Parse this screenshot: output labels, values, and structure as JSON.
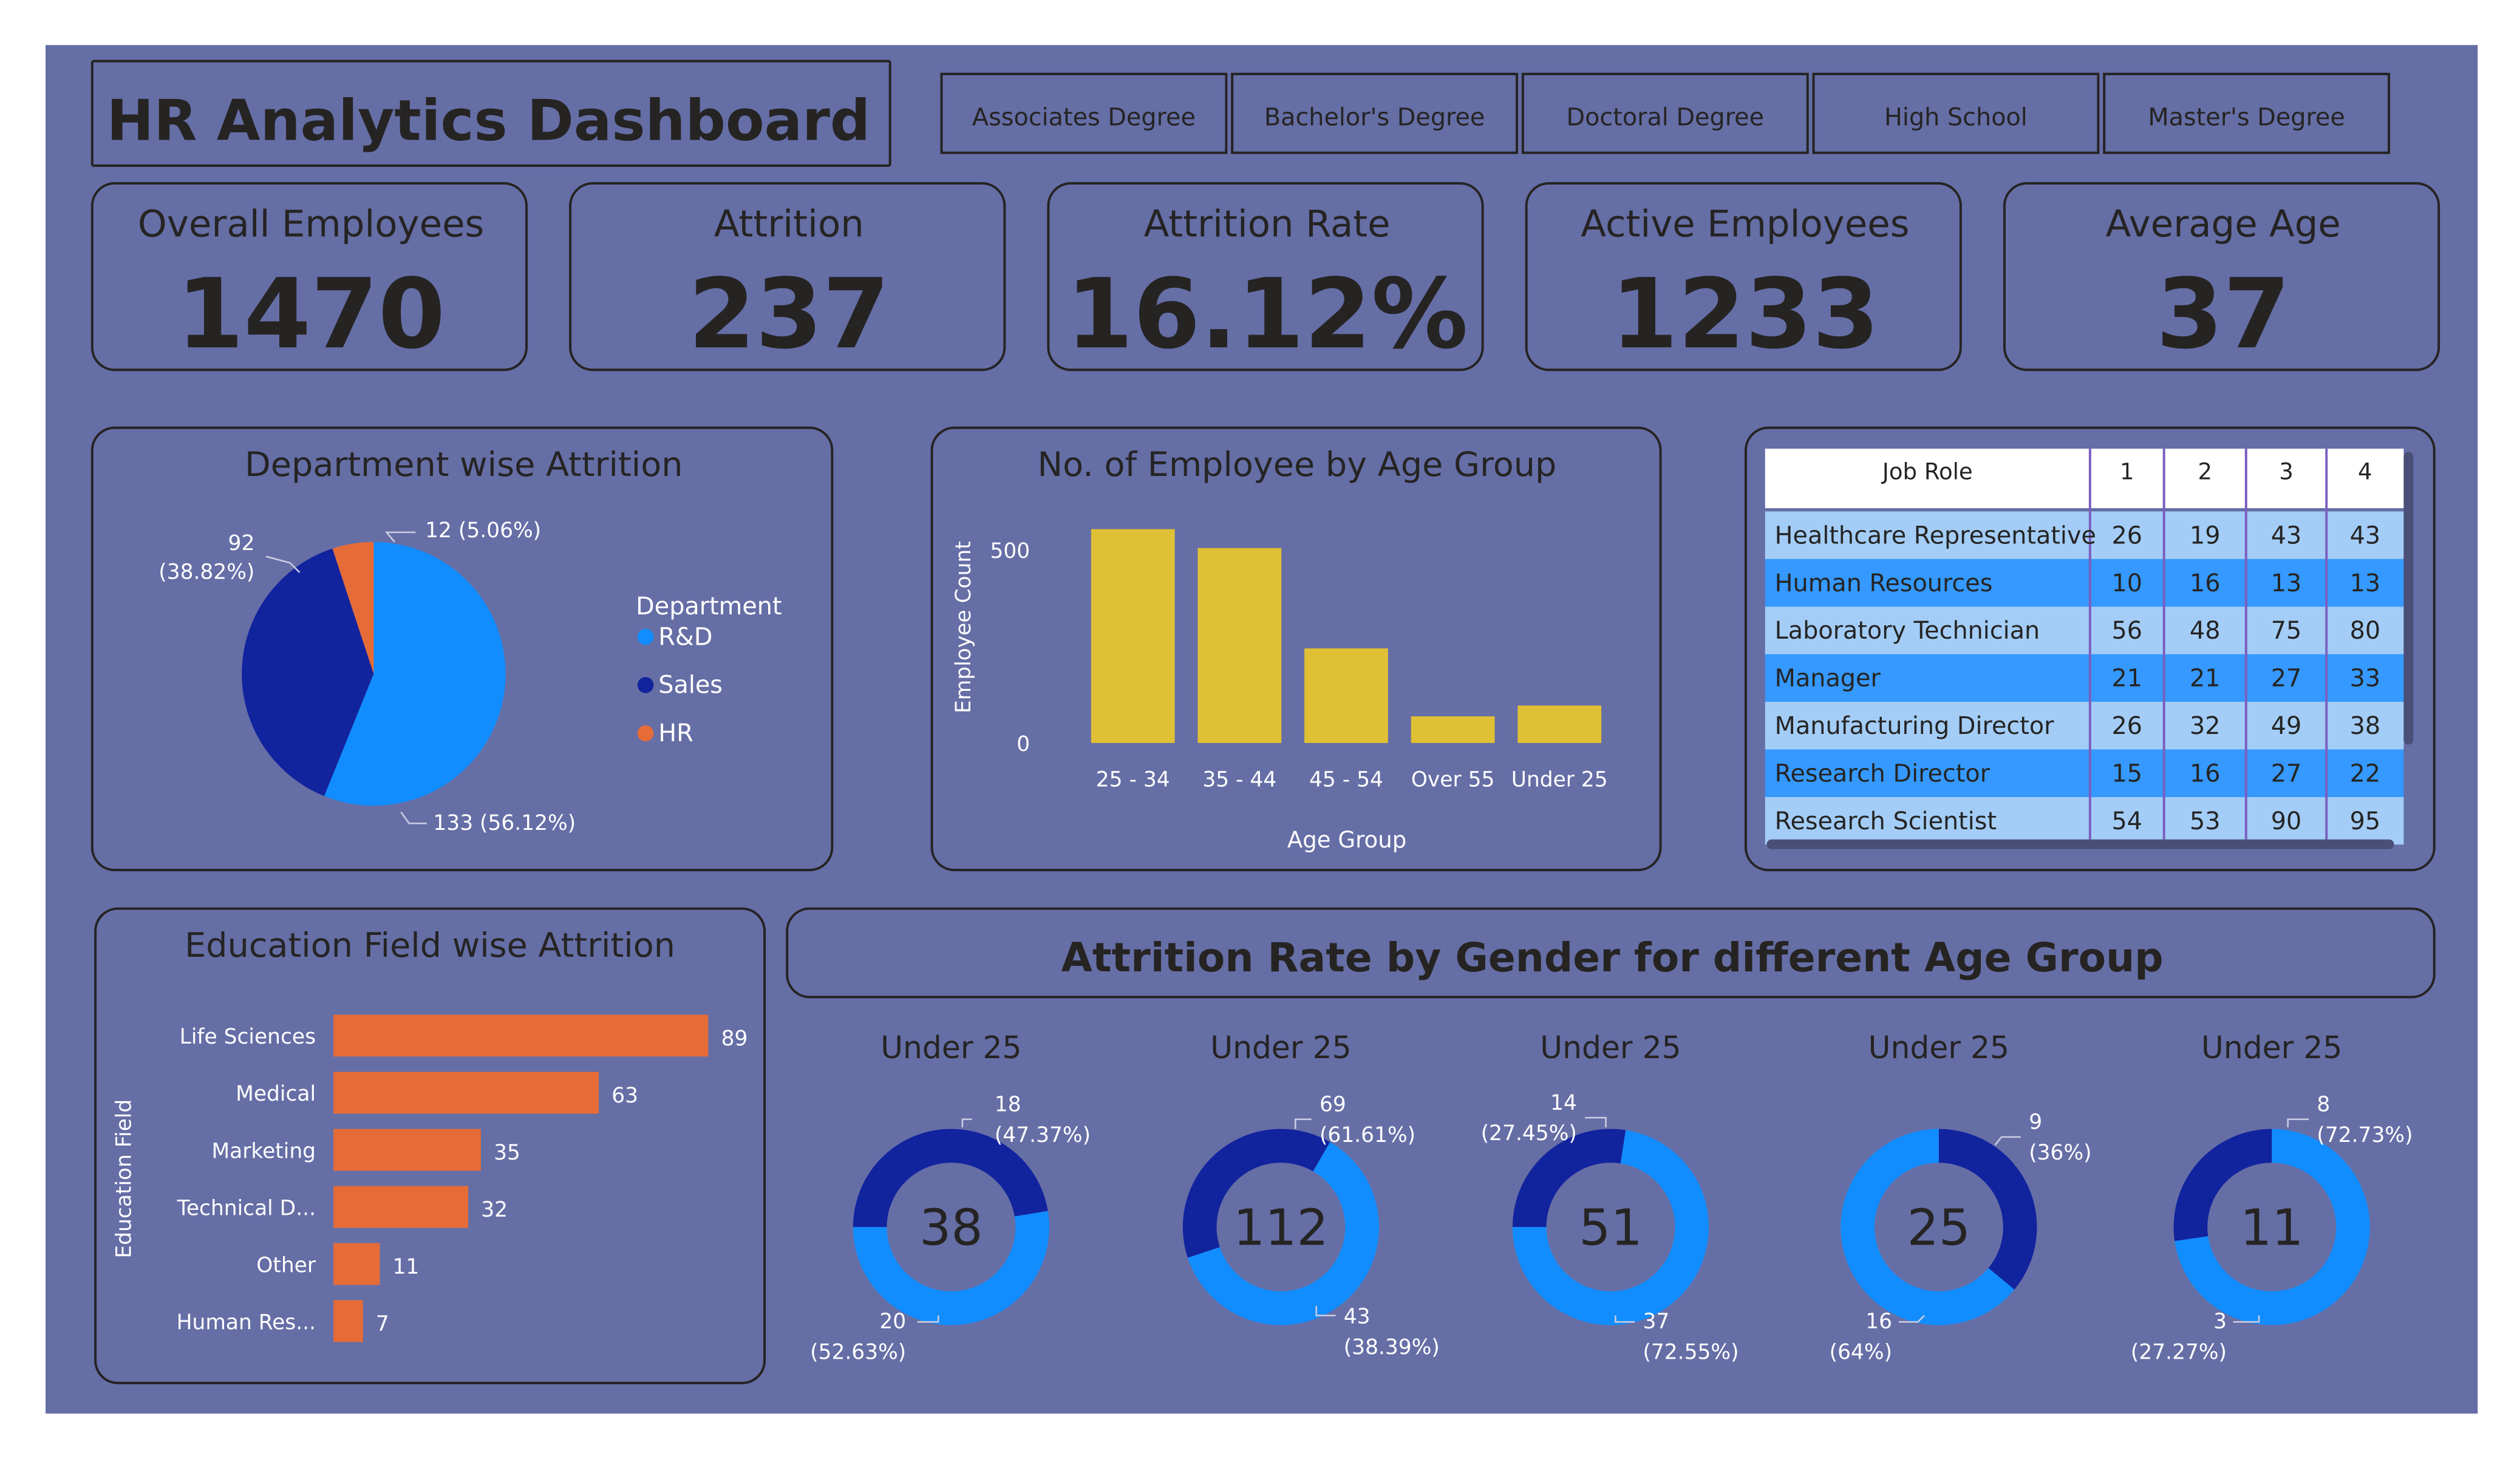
{
  "title": "HR Analytics Dashboard",
  "colors": {
    "canvas": "#666ea6",
    "ink": "#252423",
    "rd": "#118dff",
    "sales": "#12239e",
    "hr": "#e66c37",
    "age_bar": "#e0c034",
    "edu_bar": "#e66c37",
    "row_dark": "#3599ff",
    "row_light": "#a3cdf7"
  },
  "education_filters": [
    "Associates Degree",
    "Bachelor's Degree",
    "Doctoral Degree",
    "High School",
    "Master's Degree"
  ],
  "kpis": [
    {
      "label": "Overall Employees",
      "value": "1470"
    },
    {
      "label": "Attrition",
      "value": "237"
    },
    {
      "label": "Attrition Rate",
      "value": "16.12%"
    },
    {
      "label": "Active Employees",
      "value": "1233"
    },
    {
      "label": "Average Age",
      "value": "37"
    }
  ],
  "chart_data": [
    {
      "id": "department",
      "type": "pie",
      "title": "Department wise Attrition",
      "legend_title": "Department",
      "legend_position": "right",
      "slices": [
        {
          "label": "R&D",
          "value": 133,
          "data_label": "133 (56.12%)"
        },
        {
          "label": "Sales",
          "value": 92,
          "data_label": "92 (38.82%)"
        },
        {
          "label": "HR",
          "value": 12,
          "data_label": "12 (5.06%)"
        }
      ]
    },
    {
      "id": "age_group",
      "type": "bar",
      "title": "No. of Employee by Age Group",
      "xlabel": "Age Group",
      "ylabel": "Employee Count",
      "categories": [
        "25 - 34",
        "35 - 44",
        "45 - 54",
        "Over 55",
        "Under 25"
      ],
      "values": [
        554,
        505,
        245,
        69,
        97
      ],
      "yticks": [
        "0",
        "500"
      ],
      "ylim": [
        0,
        560
      ],
      "grid": false
    },
    {
      "id": "education_field",
      "type": "bar",
      "orientation": "horizontal",
      "title": "Education Field wise Attrition",
      "ylabel": "Education Field",
      "categories": [
        "Life Sciences",
        "Medical",
        "Marketing",
        "Technical D...",
        "Other",
        "Human Res..."
      ],
      "values": [
        89,
        63,
        35,
        32,
        11,
        7
      ],
      "xlim": [
        0,
        89
      ],
      "grid": false
    },
    {
      "id": "job_role_table",
      "type": "table",
      "columns": [
        "Job Role",
        "1",
        "2",
        "3",
        "4"
      ],
      "rows": [
        [
          "Healthcare Representative",
          "26",
          "19",
          "43",
          "43"
        ],
        [
          "Human Resources",
          "10",
          "16",
          "13",
          "13"
        ],
        [
          "Laboratory Technician",
          "56",
          "48",
          "75",
          "80"
        ],
        [
          "Manager",
          "21",
          "21",
          "27",
          "33"
        ],
        [
          "Manufacturing Director",
          "26",
          "32",
          "49",
          "38"
        ],
        [
          "Research Director",
          "15",
          "16",
          "27",
          "22"
        ],
        [
          "Research Scientist",
          "54",
          "53",
          "90",
          "95"
        ]
      ]
    },
    {
      "id": "gender_age",
      "type": "pie",
      "style": "donut",
      "title": "Attrition Rate by Gender for different Age Group",
      "donuts": [
        {
          "title": "Under 25",
          "center": "38",
          "slices": [
            {
              "value": 18,
              "label_a": "18",
              "label_b": "(47.37%)",
              "color": "sales"
            },
            {
              "value": 20,
              "label_a": "20",
              "label_b": "(52.63%)",
              "color": "rd"
            }
          ]
        },
        {
          "title": "Under 25",
          "center": "112",
          "slices": [
            {
              "value": 69,
              "label_a": "69",
              "label_b": "(61.61%)",
              "color": "rd"
            },
            {
              "value": 43,
              "label_a": "43",
              "label_b": "(38.39%)",
              "color": "sales"
            }
          ]
        },
        {
          "title": "Under 25",
          "center": "51",
          "slices": [
            {
              "value": 14,
              "label_a": "14",
              "label_b": "(27.45%)",
              "color": "sales"
            },
            {
              "value": 37,
              "label_a": "37",
              "label_b": "(72.55%)",
              "color": "rd"
            }
          ]
        },
        {
          "title": "Under 25",
          "center": "25",
          "slices": [
            {
              "value": 9,
              "label_a": "9",
              "label_b": "(36%)",
              "color": "sales"
            },
            {
              "value": 16,
              "label_a": "16",
              "label_b": "(64%)",
              "color": "rd"
            }
          ]
        },
        {
          "title": "Under 25",
          "center": "11",
          "slices": [
            {
              "value": 8,
              "label_a": "8",
              "label_b": "(72.73%)",
              "color": "rd"
            },
            {
              "value": 3,
              "label_a": "3",
              "label_b": "(27.27%)",
              "color": "sales"
            }
          ]
        }
      ]
    }
  ]
}
